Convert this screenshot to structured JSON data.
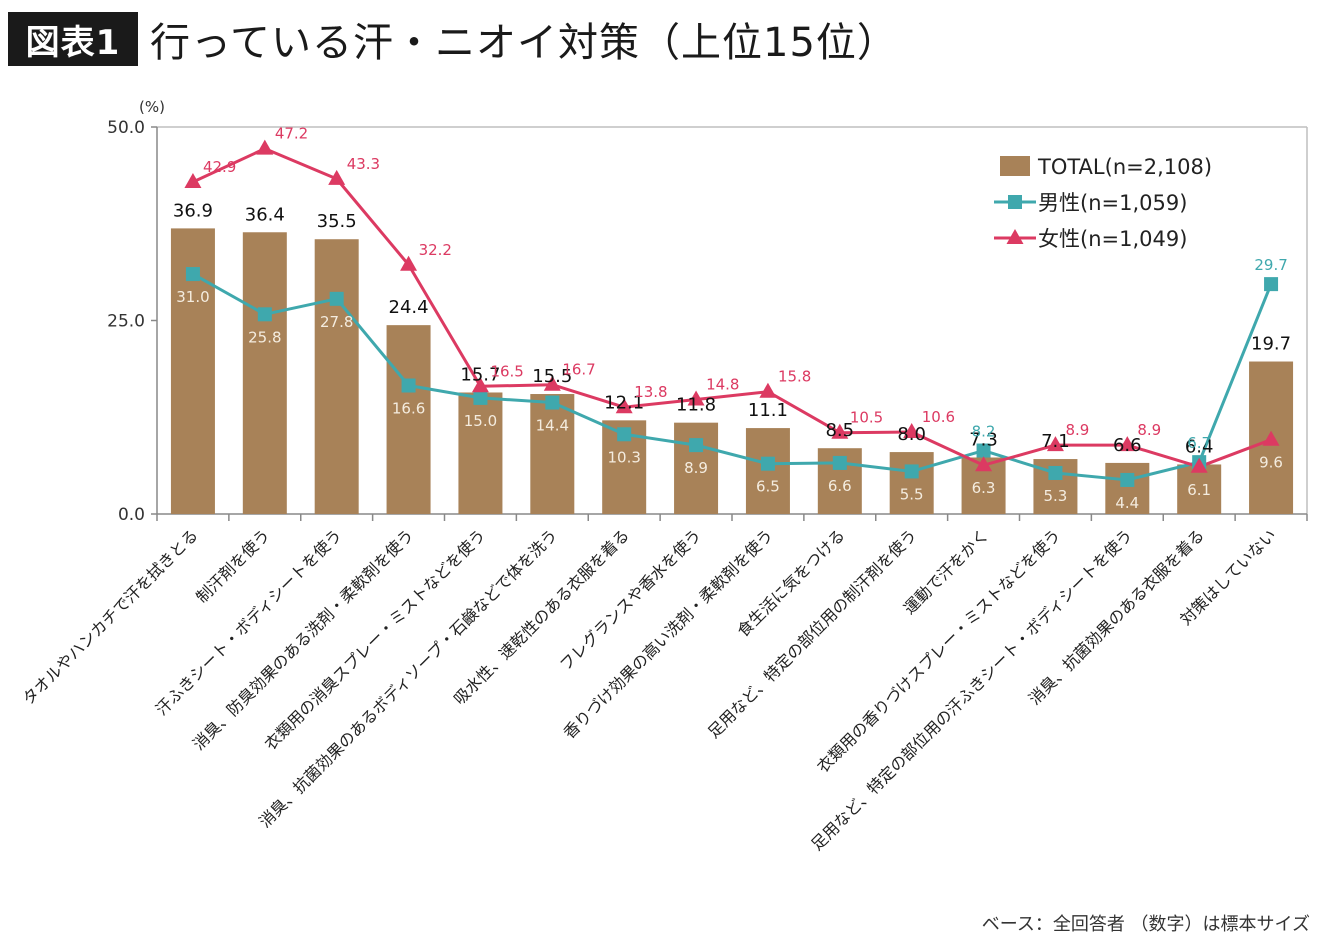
{
  "header": {
    "badge": "図表1",
    "title": "行っている汗・ニオイ対策（上位15位）"
  },
  "footnote": "ベース：全回答者 （数字）は標本サイズ",
  "colors": {
    "bar": "#a88258",
    "male": "#3fa8ad",
    "female": "#dc3a62",
    "axis": "#888888",
    "grid": "#bfbfbf"
  },
  "chart_data": {
    "type": "bar",
    "title": "行っている汗・ニオイ対策（上位15位）",
    "ylabel": "(%)",
    "ylim": [
      0,
      50
    ],
    "yticks": [
      "0.0",
      "25.0",
      "50.0"
    ],
    "grid": false,
    "legend_position": "top-right",
    "categories": [
      "タオルやハンカチで汗を拭きとる",
      "制汗剤を使う",
      "汗ふきシート・ボディシートを使う",
      "消臭、防臭効果のある洗剤・柔軟剤を使う",
      "衣類用の消臭スプレー・ミストなどを使う",
      "消臭、抗菌効果のあるボディソープ・石鹸などで体を洗う",
      "吸水性、速乾性のある衣服を着る",
      "フレグランスや香水を使う",
      "香りづけ効果の高い洗剤・柔軟剤を使う",
      "食生活に気をつける",
      "足用など、特定の部位用の制汗剤を使う",
      "運動で汗をかく",
      "衣類用の香りづけスプレー・ミストなどを使う",
      "足用など、特定の部位用の汗ふきシート・ボディシートを使う",
      "消臭、抗菌効果のある衣服を着る",
      "対策はしていない"
    ],
    "series": [
      {
        "name": "TOTAL(n=2,108)",
        "kind": "bar",
        "values": [
          36.9,
          36.4,
          35.5,
          24.4,
          15.7,
          15.5,
          12.1,
          11.8,
          11.1,
          8.5,
          8.0,
          7.3,
          7.1,
          6.6,
          6.4,
          19.7
        ],
        "labels": [
          "36.9",
          "36.4",
          "35.5",
          "24.4",
          "15.7",
          "15.5",
          "12.1",
          "11.8",
          "11.1",
          "8.5",
          "8.0",
          "7.3",
          "7.1",
          "6.6",
          "6.4",
          "19.7"
        ]
      },
      {
        "name": "男性(n=1,059)",
        "kind": "line",
        "marker": "square",
        "values": [
          31.0,
          25.8,
          27.8,
          16.6,
          15.0,
          14.4,
          10.3,
          8.9,
          6.5,
          6.6,
          5.5,
          8.2,
          5.3,
          4.4,
          6.7,
          29.7
        ],
        "labels": [
          "31.0",
          "25.8",
          "27.8",
          "16.6",
          "15.0",
          "14.4",
          "10.3",
          "8.9",
          "6.5",
          "6.6",
          "5.5",
          "8.2",
          "5.3",
          "4.4",
          "6.7",
          "29.7"
        ]
      },
      {
        "name": "女性(n=1,049)",
        "kind": "line",
        "marker": "triangle",
        "values": [
          42.9,
          47.2,
          43.3,
          32.2,
          16.5,
          16.7,
          13.8,
          14.8,
          15.8,
          10.5,
          10.6,
          6.3,
          8.9,
          8.9,
          6.1,
          9.6
        ],
        "labels": [
          "42.9",
          "47.2",
          "43.3",
          "32.2",
          "16.5",
          "16.7",
          "13.8",
          "14.8",
          "15.8",
          "10.5",
          "10.6",
          "6.3",
          "8.9",
          "8.9",
          "6.1",
          "9.6"
        ]
      }
    ]
  }
}
